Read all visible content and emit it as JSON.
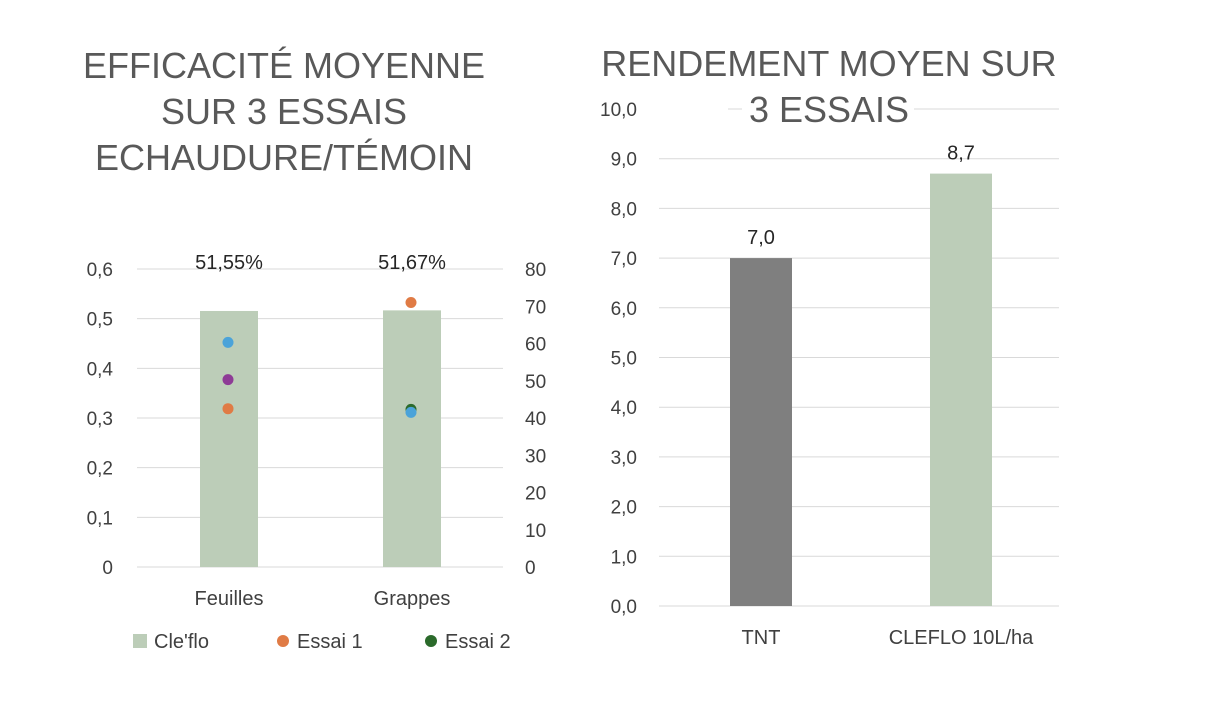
{
  "chart_data": [
    {
      "type": "bar",
      "title_lines": [
        "EFFICACITÉ MOYENNE",
        "SUR 3 ESSAIS",
        "ECHAUDURE/TÉMOIN"
      ],
      "categories": [
        "Feuilles",
        "Grappes"
      ],
      "ylim": [
        0,
        0.6
      ],
      "y_ticks": [
        "0",
        "0,1",
        "0,2",
        "0,3",
        "0,4",
        "0,5",
        "0,6"
      ],
      "y2lim": [
        0,
        80
      ],
      "y2_ticks": [
        "0",
        "10",
        "20",
        "30",
        "40",
        "50",
        "60",
        "70",
        "80"
      ],
      "grid": true,
      "legend_position": "bottom",
      "series": [
        {
          "name": "Cle'flo",
          "kind": "bar",
          "axis": "left",
          "color": "#bccdb8",
          "values": [
            0.5155,
            0.5167
          ],
          "labels": [
            "51,55%",
            "51,67%"
          ]
        },
        {
          "name": "Essai 1",
          "kind": "scatter",
          "axis": "right",
          "color": "#e07b45",
          "values": [
            42.5,
            71
          ]
        },
        {
          "name": "Essai 2",
          "kind": "scatter",
          "axis": "right",
          "color": "#2b6a2b",
          "values": [
            null,
            42.3
          ]
        },
        {
          "kind": "scatter",
          "axis": "right",
          "color": "#4ba3d9",
          "values": [
            60.3,
            41.5
          ]
        },
        {
          "kind": "scatter",
          "axis": "right",
          "color": "#8e3b96",
          "values": [
            50.3,
            null
          ]
        }
      ]
    },
    {
      "type": "bar",
      "title_lines": [
        "RENDEMENT MOYEN SUR",
        "3 ESSAIS"
      ],
      "categories": [
        "TNT",
        "CLEFLO 10L/ha"
      ],
      "values": [
        7.0,
        8.7
      ],
      "labels": [
        "7,0",
        "8,7"
      ],
      "colors": [
        "#7f7f7f",
        "#bccdb8"
      ],
      "ylim": [
        0,
        10
      ],
      "y_ticks": [
        "0,0",
        "1,0",
        "2,0",
        "3,0",
        "4,0",
        "5,0",
        "6,0",
        "7,0",
        "8,0",
        "9,0",
        "10,0"
      ],
      "grid": true
    }
  ]
}
